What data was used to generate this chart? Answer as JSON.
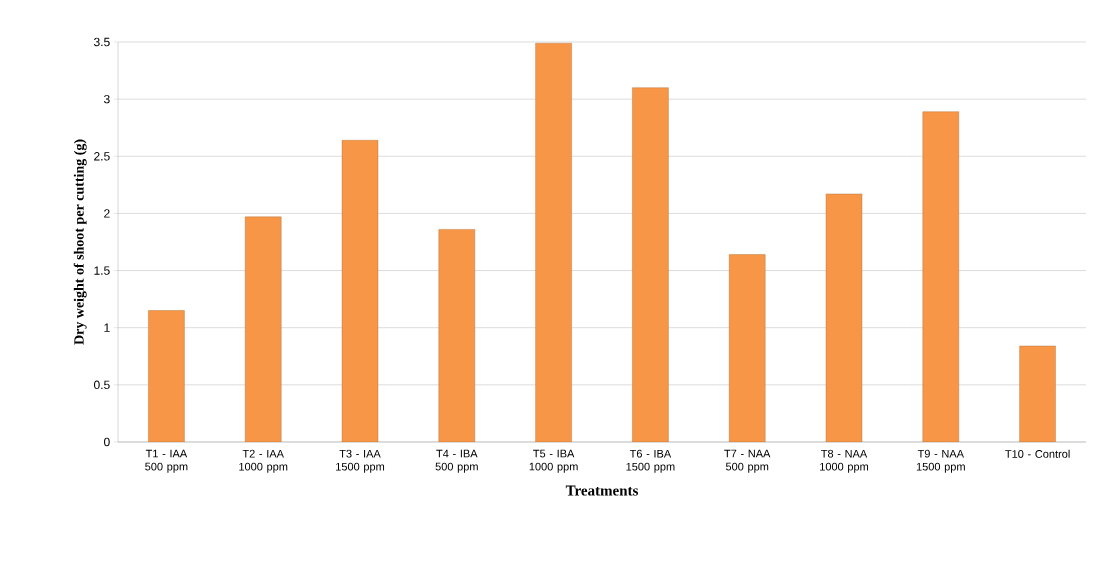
{
  "chart_data": {
    "type": "bar",
    "xlabel": "Treatments",
    "ylabel": "Dry weight of shoot per cutting (g)",
    "categories": [
      "T1 - IAA 500 ppm",
      "T2 - IAA 1000 ppm",
      "T3 - IAA 1500 ppm",
      "T4 - IBA 500 ppm",
      "T5 - IBA 1000 ppm",
      "T6 - IBA 1500 ppm",
      "T7 - NAA 500 ppm",
      "T8 - NAA 1000 ppm",
      "T9 - NAA 1500 ppm",
      "T10 - Control"
    ],
    "values": [
      1.15,
      1.97,
      2.64,
      1.86,
      3.49,
      3.1,
      1.64,
      2.17,
      2.89,
      0.84
    ],
    "color": "#f79646",
    "ylim": [
      0,
      3.5
    ],
    "yticks": [
      0,
      0.5,
      1,
      1.5,
      2,
      2.5,
      3,
      3.5
    ],
    "grid": "y"
  }
}
